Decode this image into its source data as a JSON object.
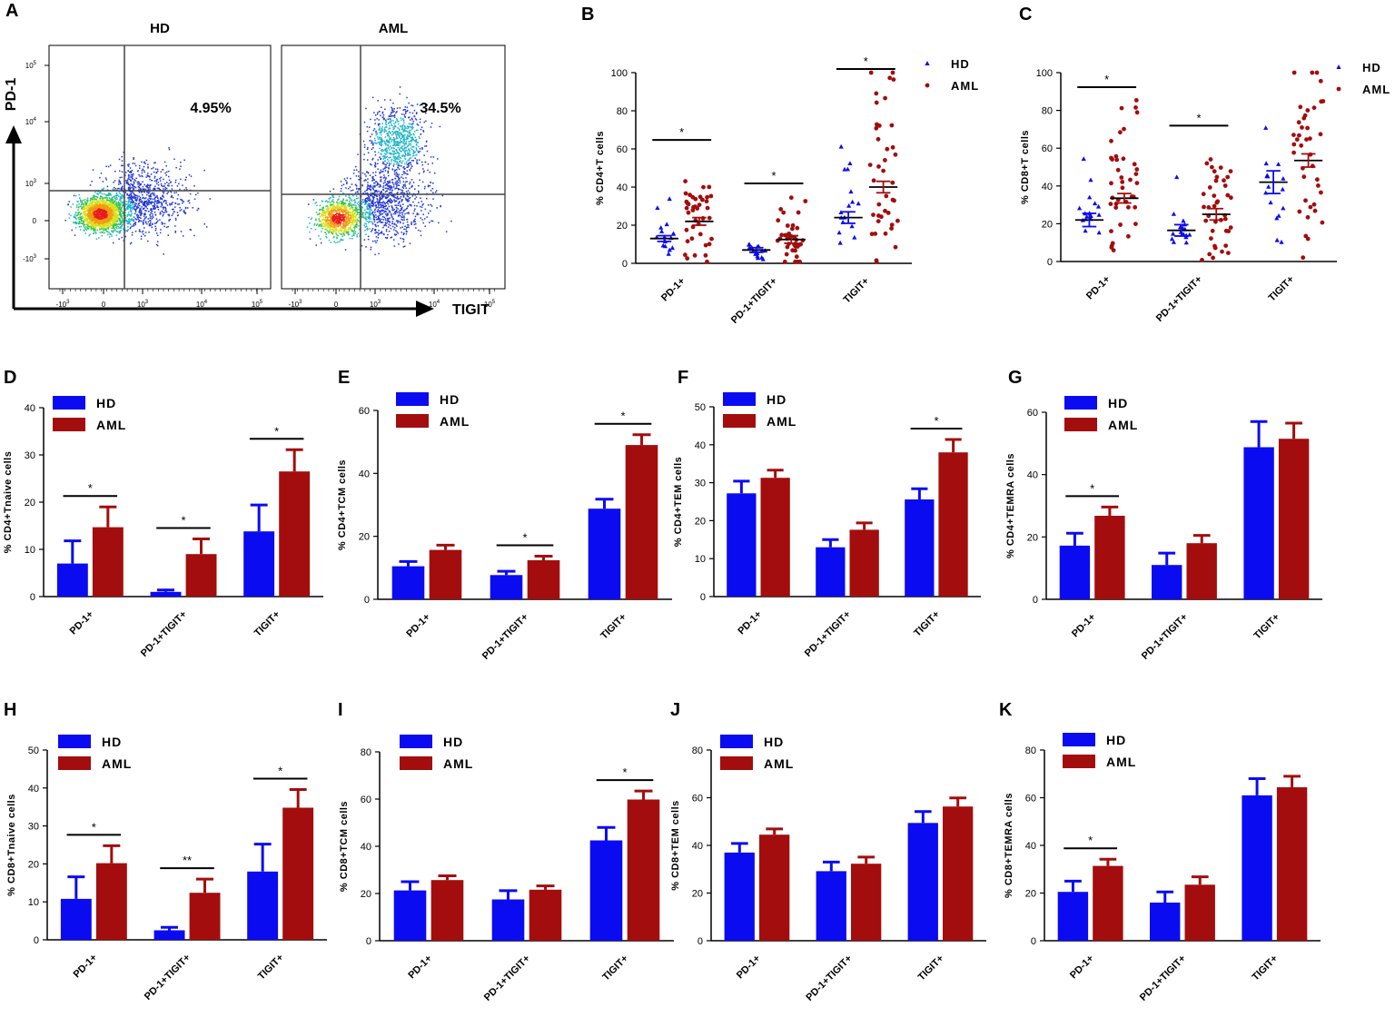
{
  "colors": {
    "hd": "#0b0bf2",
    "aml": "#a30d0d",
    "axis": "#000000"
  },
  "flow": {
    "panel_letter": "A",
    "panels": [
      {
        "label": "HD",
        "percent": "4.95%"
      },
      {
        "label": "AML",
        "percent": "34.5%"
      }
    ],
    "y_axis_label": "PD-1",
    "x_axis_label": "TIGIT",
    "y_ticks": [
      {
        "base": "10",
        "exp": "5"
      },
      {
        "base": "10",
        "exp": "4"
      },
      {
        "base": "10",
        "exp": "3"
      },
      {
        "base": "0",
        "exp": ""
      },
      {
        "base": "-10",
        "exp": "3"
      }
    ],
    "x_ticks": [
      {
        "base": "-10",
        "exp": "3"
      },
      {
        "base": "0",
        "exp": ""
      },
      {
        "base": "10",
        "exp": "3"
      },
      {
        "base": "10",
        "exp": "4"
      },
      {
        "base": "10",
        "exp": "5"
      }
    ]
  },
  "chart_data": [
    {
      "panel": "B",
      "type": "scatter",
      "ylabel": "% CD4+T cells",
      "ylim": [
        0,
        100
      ],
      "yticks": [
        0,
        20,
        40,
        60,
        80,
        100
      ],
      "categories": [
        "PD-1+",
        "PD-1+TIGIT+",
        "TIGIT+"
      ],
      "legend": [
        "HD",
        "AML"
      ],
      "series": [
        {
          "name": "HD",
          "mean": [
            13,
            7,
            24
          ],
          "sem": [
            1.5,
            1.2,
            3
          ]
        },
        {
          "name": "AML",
          "mean": [
            22,
            12.5,
            40
          ],
          "sem": [
            2,
            2,
            3
          ]
        }
      ],
      "significance": [
        "*",
        "*",
        "*"
      ]
    },
    {
      "panel": "C",
      "type": "scatter",
      "ylabel": "% CD8+T cells",
      "ylim": [
        0,
        100
      ],
      "yticks": [
        0,
        20,
        40,
        60,
        80,
        100
      ],
      "categories": [
        "PD-1+",
        "PD-1+TIGIT+",
        "TIGIT+"
      ],
      "legend": [
        "HD",
        "AML"
      ],
      "series": [
        {
          "name": "HD",
          "mean": [
            22,
            16.5,
            42
          ],
          "sem": [
            3.5,
            3,
            6
          ]
        },
        {
          "name": "AML",
          "mean": [
            33.5,
            25,
            53.5
          ],
          "sem": [
            2.5,
            3,
            3.5
          ]
        }
      ],
      "significance": [
        "*",
        "*",
        ""
      ]
    },
    {
      "panel": "D",
      "type": "bar",
      "ylabel": "% CD4+Tnaive cells",
      "ylim": [
        0,
        40
      ],
      "yticks": [
        0,
        10,
        20,
        30,
        40
      ],
      "categories": [
        "PD-1+",
        "PD-1+TIGIT+",
        "TIGIT+"
      ],
      "legend": [
        "HD",
        "AML"
      ],
      "series": [
        {
          "name": "HD",
          "values": [
            7,
            1,
            13.8
          ],
          "err": [
            4.8,
            0.4,
            5.6
          ]
        },
        {
          "name": "AML",
          "values": [
            14.7,
            9,
            26.5
          ],
          "err": [
            4.3,
            3.2,
            4.6
          ]
        }
      ],
      "significance": [
        "*",
        "*",
        "*"
      ]
    },
    {
      "panel": "E",
      "type": "bar",
      "ylabel": "% CD4+TCM cells",
      "ylim": [
        0,
        60
      ],
      "yticks": [
        0,
        20,
        40,
        60
      ],
      "categories": [
        "PD-1+",
        "PD-1+TIGIT+",
        "TIGIT+"
      ],
      "legend": [
        "HD",
        "AML"
      ],
      "series": [
        {
          "name": "HD",
          "values": [
            10.5,
            7.7,
            28.8
          ],
          "err": [
            1.5,
            1.2,
            3
          ]
        },
        {
          "name": "AML",
          "values": [
            15.7,
            12.4,
            49
          ],
          "err": [
            1.5,
            1.3,
            3.3
          ]
        }
      ],
      "significance": [
        "",
        "*",
        "*"
      ]
    },
    {
      "panel": "F",
      "type": "bar",
      "ylabel": "% CD4+TEM cells",
      "ylim": [
        0,
        50
      ],
      "yticks": [
        0,
        10,
        20,
        30,
        40,
        50
      ],
      "categories": [
        "PD-1+",
        "PD-1+TIGIT+",
        "TIGIT+"
      ],
      "legend": [
        "HD",
        "AML"
      ],
      "series": [
        {
          "name": "HD",
          "values": [
            27.2,
            13,
            25.6
          ],
          "err": [
            3.2,
            2,
            2.8
          ]
        },
        {
          "name": "AML",
          "values": [
            31.3,
            17.6,
            38
          ],
          "err": [
            2,
            1.8,
            3.4
          ]
        }
      ],
      "significance": [
        "",
        "",
        "*"
      ]
    },
    {
      "panel": "G",
      "type": "bar",
      "ylabel": "% CD4+TEMRA cells",
      "ylim": [
        0,
        60
      ],
      "yticks": [
        0,
        20,
        40,
        60
      ],
      "categories": [
        "PD-1+",
        "PD-1+TIGIT+",
        "TIGIT+"
      ],
      "legend": [
        "HD",
        "AML"
      ],
      "series": [
        {
          "name": "HD",
          "values": [
            17.2,
            11,
            48.8
          ],
          "err": [
            4,
            3.8,
            8.2
          ]
        },
        {
          "name": "AML",
          "values": [
            26.8,
            18,
            51.5
          ],
          "err": [
            2.8,
            2.5,
            5
          ]
        }
      ],
      "significance": [
        "*",
        "",
        ""
      ]
    },
    {
      "panel": "H",
      "type": "bar",
      "ylabel": "% CD8+Tnaive cells",
      "ylim": [
        0,
        50
      ],
      "yticks": [
        0,
        10,
        20,
        30,
        40,
        50
      ],
      "categories": [
        "PD-1+",
        "PD-1+TIGIT+",
        "TIGIT+"
      ],
      "legend": [
        "HD",
        "AML"
      ],
      "series": [
        {
          "name": "HD",
          "values": [
            10.8,
            2.5,
            18
          ],
          "err": [
            5.8,
            0.8,
            7.2
          ]
        },
        {
          "name": "AML",
          "values": [
            20.2,
            12.4,
            34.8
          ],
          "err": [
            4.6,
            3.6,
            4.8
          ]
        }
      ],
      "significance": [
        "*",
        "**",
        "*"
      ]
    },
    {
      "panel": "I",
      "type": "bar",
      "ylabel": "% CD8+TCM cells",
      "ylim": [
        0,
        80
      ],
      "yticks": [
        0,
        20,
        40,
        60,
        80
      ],
      "categories": [
        "PD-1+",
        "PD-1+TIGIT+",
        "TIGIT+"
      ],
      "legend": [
        "HD",
        "AML"
      ],
      "series": [
        {
          "name": "HD",
          "values": [
            21.3,
            17.5,
            42.5
          ],
          "err": [
            3.7,
            3.7,
            5.5
          ]
        },
        {
          "name": "AML",
          "values": [
            25.7,
            21.6,
            59.8
          ],
          "err": [
            1.8,
            1.6,
            3.6
          ]
        }
      ],
      "significance": [
        "",
        "",
        "*"
      ]
    },
    {
      "panel": "J",
      "type": "bar",
      "ylabel": "% CD8+TEM cells",
      "ylim": [
        0,
        80
      ],
      "yticks": [
        0,
        20,
        40,
        60,
        80
      ],
      "categories": [
        "PD-1+",
        "PD-1+TIGIT+",
        "TIGIT+"
      ],
      "legend": [
        "HD",
        "AML"
      ],
      "series": [
        {
          "name": "HD",
          "values": [
            37,
            29.2,
            49.4
          ],
          "err": [
            3.8,
            3.8,
            4.8
          ]
        },
        {
          "name": "AML",
          "values": [
            44.5,
            32.3,
            56.3
          ],
          "err": [
            2.4,
            2.8,
            3.6
          ]
        }
      ],
      "significance": [
        "",
        "",
        ""
      ]
    },
    {
      "panel": "K",
      "type": "bar",
      "ylabel": "% CD8+TEMRA cells",
      "ylim": [
        0,
        80
      ],
      "yticks": [
        0,
        20,
        40,
        60,
        80
      ],
      "categories": [
        "PD-1+",
        "PD-1+TIGIT+",
        "TIGIT+"
      ],
      "legend": [
        "HD",
        "AML"
      ],
      "series": [
        {
          "name": "HD",
          "values": [
            20.5,
            16,
            61
          ],
          "err": [
            4.5,
            4.5,
            7
          ]
        },
        {
          "name": "AML",
          "values": [
            31.4,
            23.5,
            64.4
          ],
          "err": [
            2.8,
            3.3,
            4.6
          ]
        }
      ],
      "significance": [
        "*",
        "",
        ""
      ]
    }
  ]
}
